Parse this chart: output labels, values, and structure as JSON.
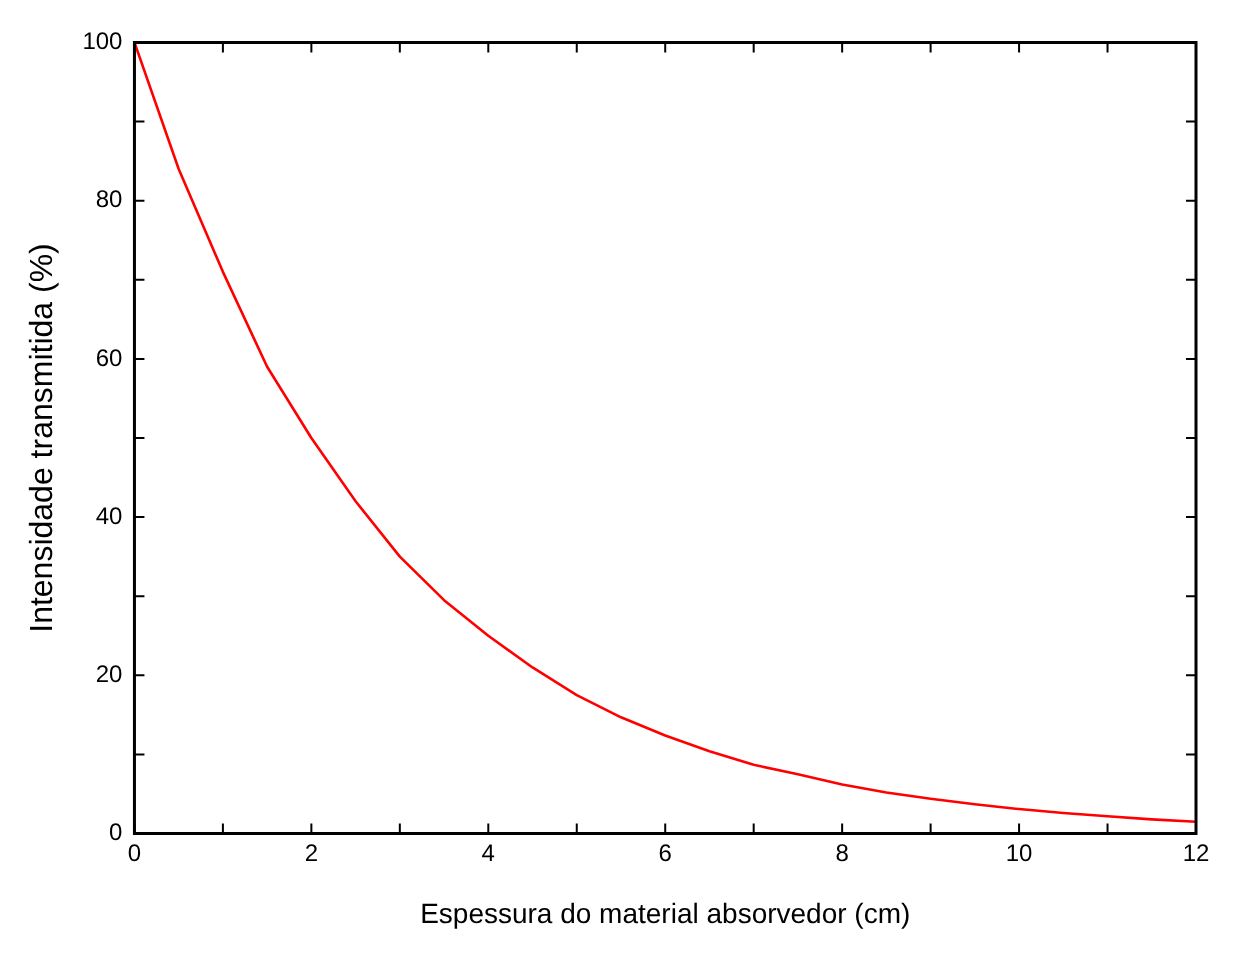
{
  "chart_data": {
    "type": "line",
    "xlabel": "Espessura do material absorvedor (cm)",
    "ylabel": "Intensidade transmitida (%)",
    "x": [
      0,
      0.5,
      1,
      1.5,
      2,
      2.5,
      3,
      3.5,
      4,
      4.5,
      5,
      5.5,
      6,
      6.5,
      7,
      7.5,
      8,
      8.5,
      9,
      9.5,
      10,
      10.5,
      11,
      11.5,
      12
    ],
    "series": [
      {
        "color": "#ff0000",
        "values": [
          100,
          84,
          71,
          59,
          50,
          42,
          35,
          29.5,
          25,
          21,
          17.5,
          14.7,
          12.4,
          10.4,
          8.7,
          7.5,
          6.2,
          5.2,
          4.4,
          3.7,
          3.1,
          2.6,
          2.2,
          1.8,
          1.5
        ]
      }
    ],
    "xlim": [
      0,
      12
    ],
    "ylim": [
      0,
      100
    ],
    "xticks": [
      0,
      {
        "value": 1,
        "label": null
      },
      2,
      {
        "value": 3,
        "label": null
      },
      4,
      {
        "value": 5,
        "label": null
      },
      6,
      {
        "value": 7,
        "label": null
      },
      8,
      {
        "value": 9,
        "label": null
      },
      10,
      {
        "value": 11,
        "label": null
      },
      12
    ],
    "yticks": [
      0,
      {
        "value": 10,
        "label": null
      },
      20,
      {
        "value": 30,
        "label": null
      },
      40,
      {
        "value": 50,
        "label": null
      },
      60,
      {
        "value": 70,
        "label": null
      },
      80,
      {
        "value": 90,
        "label": null
      },
      100
    ],
    "grid": false,
    "legend": false,
    "marker": "none",
    "line_style": "solid"
  }
}
